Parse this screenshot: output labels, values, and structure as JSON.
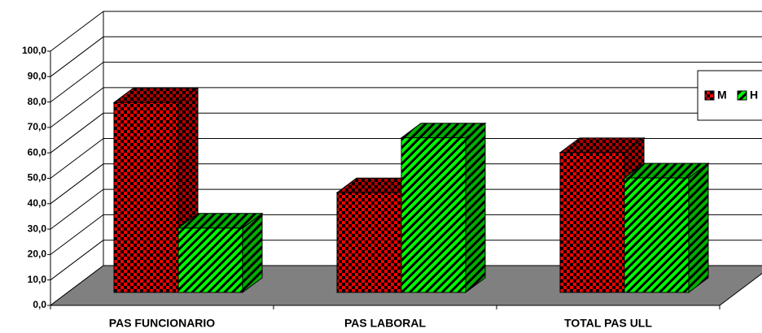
{
  "chart_data": {
    "type": "bar3d",
    "categories": [
      "PAS FUNCIONARIO",
      "PAS LABORAL",
      "TOTAL PAS ULL"
    ],
    "series": [
      {
        "name": "M",
        "color": "#ff0000",
        "values": [
          74.7,
          39.2,
          55.0
        ]
      },
      {
        "name": "H",
        "color": "#00ff00",
        "values": [
          25.3,
          60.8,
          45.0
        ]
      }
    ],
    "ylim": [
      0,
      100
    ],
    "yticks": [
      {
        "value": 0,
        "label": "0,0"
      },
      {
        "value": 10,
        "label": "10,0"
      },
      {
        "value": 20,
        "label": "20,0"
      },
      {
        "value": 30,
        "label": "30,0"
      },
      {
        "value": 40,
        "label": "40,0"
      },
      {
        "value": 50,
        "label": "50,0"
      },
      {
        "value": 60,
        "label": "60,0"
      },
      {
        "value": 70,
        "label": "70,0"
      },
      {
        "value": 80,
        "label": "80,0"
      },
      {
        "value": 90,
        "label": "90,0"
      },
      {
        "value": 100,
        "label": "100,0"
      }
    ],
    "grid": true,
    "legend": "right"
  }
}
